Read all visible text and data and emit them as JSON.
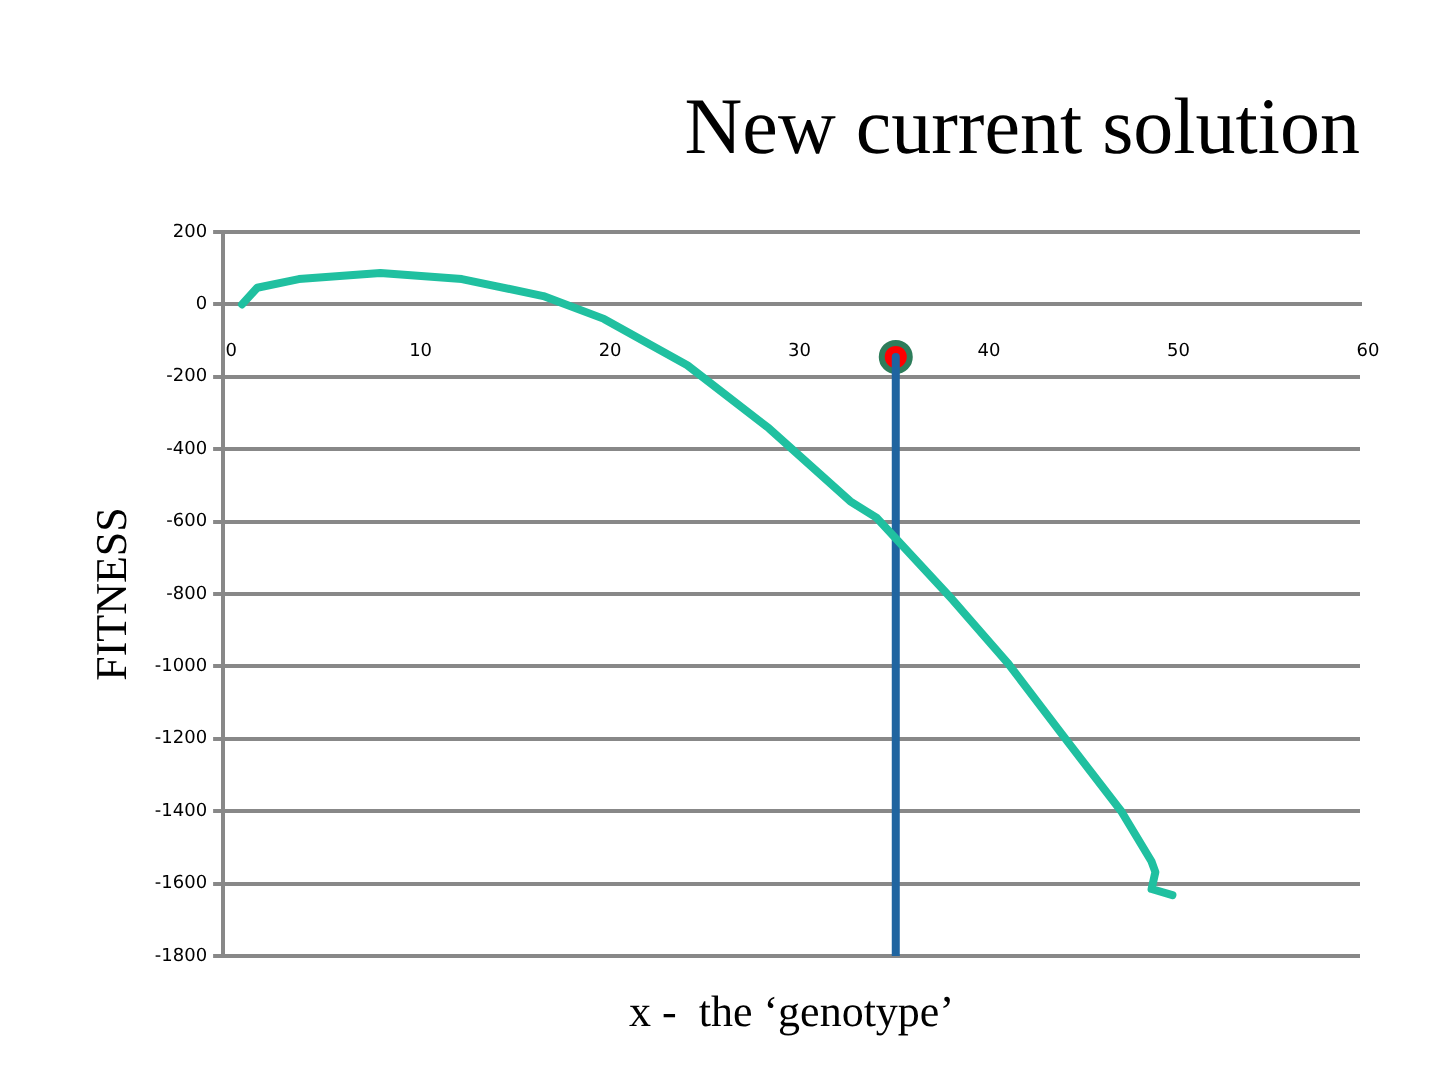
{
  "chart_data": {
    "type": "line",
    "title": "New current solution",
    "xlabel": "x -  the ‘genotype’",
    "ylabel": "FITNESS",
    "xlim": [
      0,
      60
    ],
    "xticks": [
      0,
      10,
      20,
      30,
      40,
      50,
      60
    ],
    "ylim": [
      -1800,
      200
    ],
    "yticks": [
      200,
      0,
      -200,
      -400,
      -600,
      -800,
      -1000,
      -1200,
      -1400,
      -1600,
      -1800
    ],
    "grid": "y",
    "legend": false,
    "marker": "none",
    "series": [
      {
        "color": "#20c0a0",
        "x": [
          1,
          1.8,
          4,
          8.3,
          12.6,
          16.9,
          20.1,
          24.5,
          28.8,
          33.1,
          34.5,
          38.5,
          41.4,
          44.6,
          47.4,
          49,
          49.2,
          49,
          50.1
        ],
        "values": [
          0,
          46,
          70,
          87,
          70,
          23,
          -40,
          -168,
          -342,
          -544,
          -590,
          -816,
          -990,
          -1210,
          -1400,
          -1539,
          -1568,
          -1615,
          -1632
        ]
      },
      {
        "type": "line",
        "color": "#1f64a0",
        "x": [
          35.5,
          35.5
        ],
        "values": [
          -145,
          -1800
        ]
      },
      {
        "type": "scatter",
        "color": "#ff0000",
        "marker": "circle",
        "x": [
          35.5
        ],
        "values": [
          -145
        ]
      }
    ]
  }
}
